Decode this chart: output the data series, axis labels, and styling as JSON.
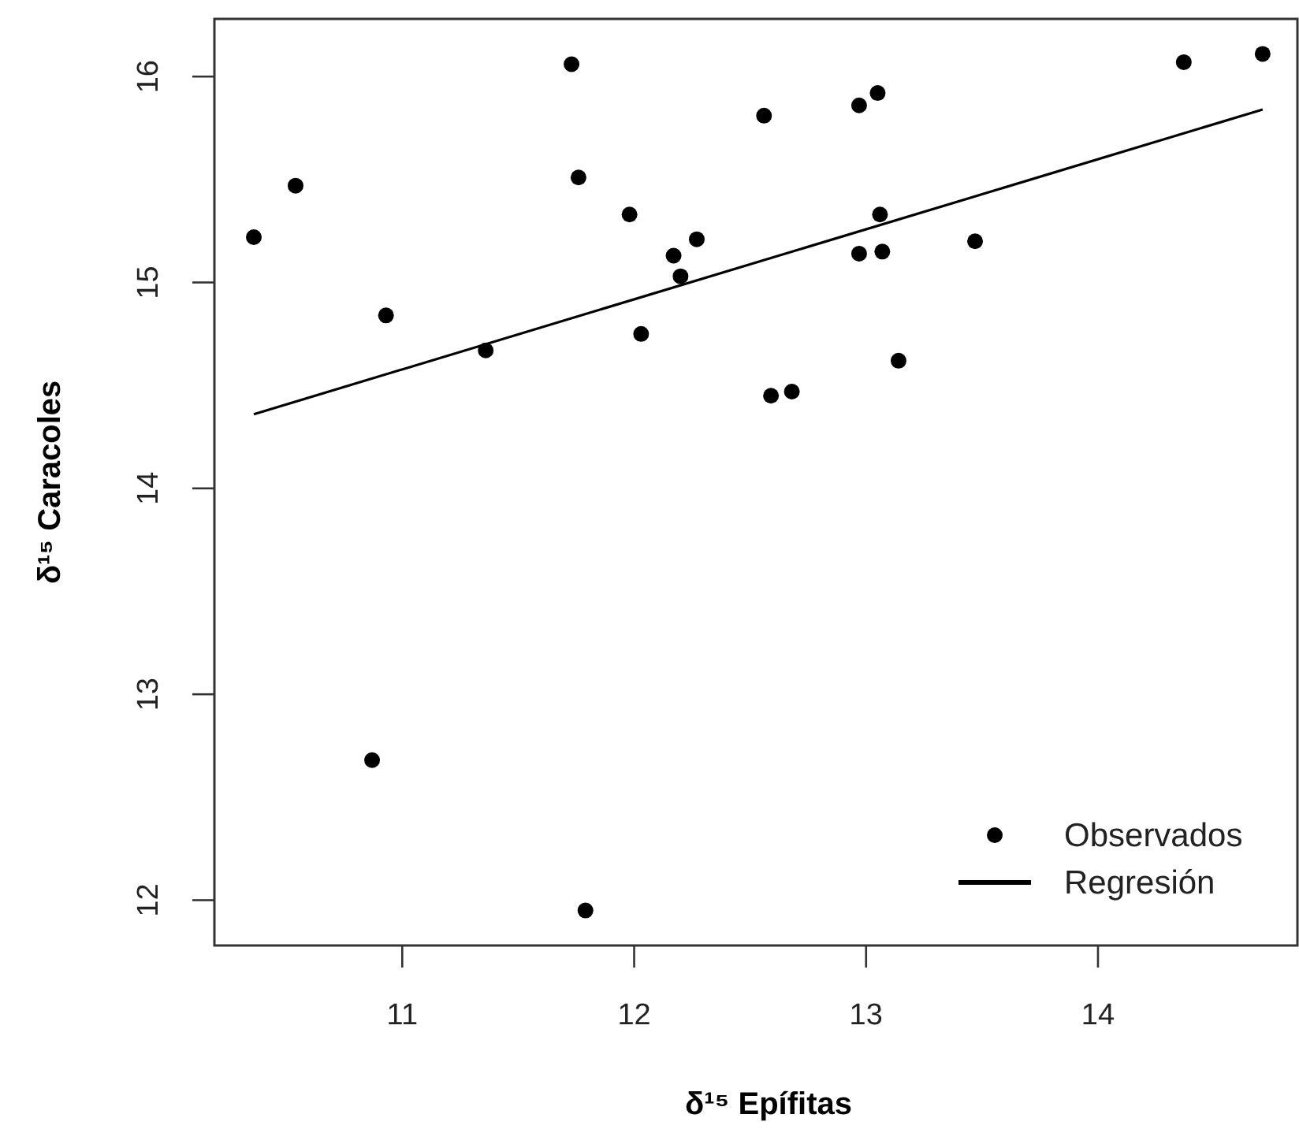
{
  "chart_data": {
    "type": "scatter",
    "xlabel": "δ¹⁵ Epífitas",
    "ylabel": "δ¹⁵ Caracoles",
    "xlim": [
      10.19,
      14.86
    ],
    "ylim": [
      11.78,
      16.28
    ],
    "xticks": [
      11,
      12,
      13,
      14
    ],
    "yticks": [
      12,
      13,
      14,
      15,
      16
    ],
    "grid": false,
    "legend": "bottom right",
    "series": [
      {
        "name": "Observados",
        "color": "#000000",
        "marker": "circle",
        "x": [
          10.36,
          10.54,
          10.93,
          11.36,
          11.73,
          11.76,
          11.98,
          12.17,
          12.2,
          12.27,
          12.03,
          12.56,
          12.97,
          13.05,
          13.06,
          12.97,
          13.07,
          13.47,
          12.59,
          12.68,
          13.14,
          14.37,
          14.71,
          10.87,
          11.79
        ],
        "values": [
          15.22,
          15.47,
          14.84,
          14.67,
          16.06,
          15.51,
          15.33,
          15.13,
          15.03,
          15.21,
          14.75,
          15.81,
          15.86,
          15.92,
          15.33,
          15.14,
          15.15,
          15.2,
          14.45,
          14.47,
          14.62,
          16.07,
          16.11,
          12.68,
          11.95
        ]
      },
      {
        "name": "Regresión",
        "type": "line",
        "color": "#000000",
        "line_style": "solid",
        "x": [
          10.36,
          14.71
        ],
        "values": [
          14.36,
          15.84
        ]
      }
    ]
  }
}
